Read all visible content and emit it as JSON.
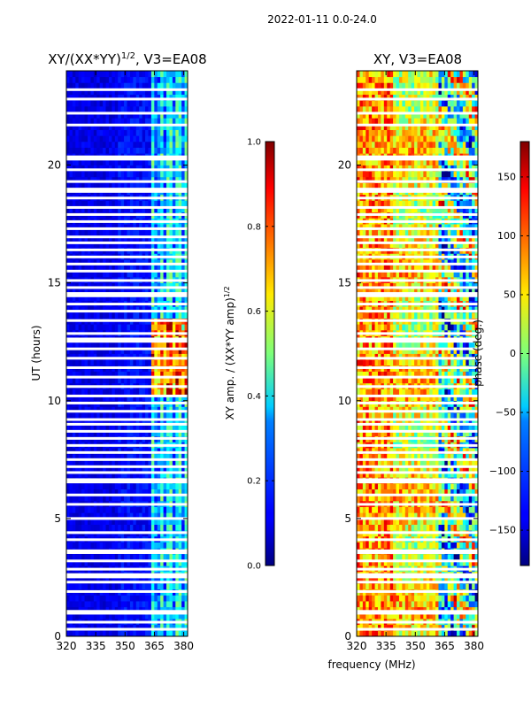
{
  "page_title": "2022-01-11 0.0-24.0",
  "shared_xlabel": "frequency (MHz)",
  "colors": {
    "background": "#ffffff",
    "gap": "#ffffff",
    "axes": "#000000"
  },
  "chart_data": [
    {
      "type": "heatmap",
      "title_prefix": "XY/(XX*YY)",
      "title_exponent": "1/2",
      "title_suffix": ", V3=EA08",
      "xlabel": "",
      "ylabel": "UT (hours)",
      "xlim": [
        320,
        382
      ],
      "ylim": [
        0,
        24
      ],
      "xticks": [
        320,
        335,
        350,
        365,
        380
      ],
      "yticks": [
        0,
        5,
        10,
        15,
        20
      ],
      "colorbar": {
        "label_prefix": "XY amp. / (XX*YY amp)",
        "label_exponent": "1/2",
        "range": [
          0.0,
          1.0
        ],
        "ticks": [
          "0.0",
          "0.2",
          "0.4",
          "0.6",
          "0.8",
          "1.0"
        ],
        "colormap": "jet"
      }
    },
    {
      "type": "heatmap",
      "title": "XY, V3=EA08",
      "xlabel": "",
      "ylabel": "",
      "xlim": [
        320,
        382
      ],
      "ylim": [
        0,
        24
      ],
      "xticks": [
        320,
        335,
        350,
        365,
        380
      ],
      "yticks": [
        0,
        5,
        10,
        15,
        20
      ],
      "colorbar": {
        "label": "phase (deg.)",
        "range": [
          -180,
          180
        ],
        "ticks": [
          "-150",
          "-100",
          "-50",
          "0",
          "50",
          "100",
          "150"
        ],
        "colormap": "jet"
      }
    }
  ],
  "data_gaps_ut_hours": [
    0.3,
    0.6,
    0.98,
    1.06,
    1.9,
    2.3,
    2.52,
    2.62,
    2.85,
    3.2,
    3.55,
    3.63,
    4.1,
    4.4,
    5.0,
    5.6,
    6.0,
    6.55,
    6.65,
    6.95,
    7.2,
    7.5,
    7.8,
    8.1,
    8.4,
    8.7,
    9.0,
    9.2,
    9.55,
    9.9,
    10.2,
    10.6,
    11.0,
    11.4,
    11.8,
    12.2,
    12.52,
    12.62,
    12.85,
    13.4,
    13.8,
    14.1,
    14.45,
    14.55,
    14.8,
    15.1,
    15.5,
    15.8,
    16.1,
    16.4,
    16.7,
    16.95,
    17.3,
    17.6,
    17.9,
    18.2,
    18.6,
    18.88,
    18.98,
    19.3,
    19.8,
    20.25,
    20.35,
    21.7,
    22.2,
    22.8,
    23.2
  ]
}
